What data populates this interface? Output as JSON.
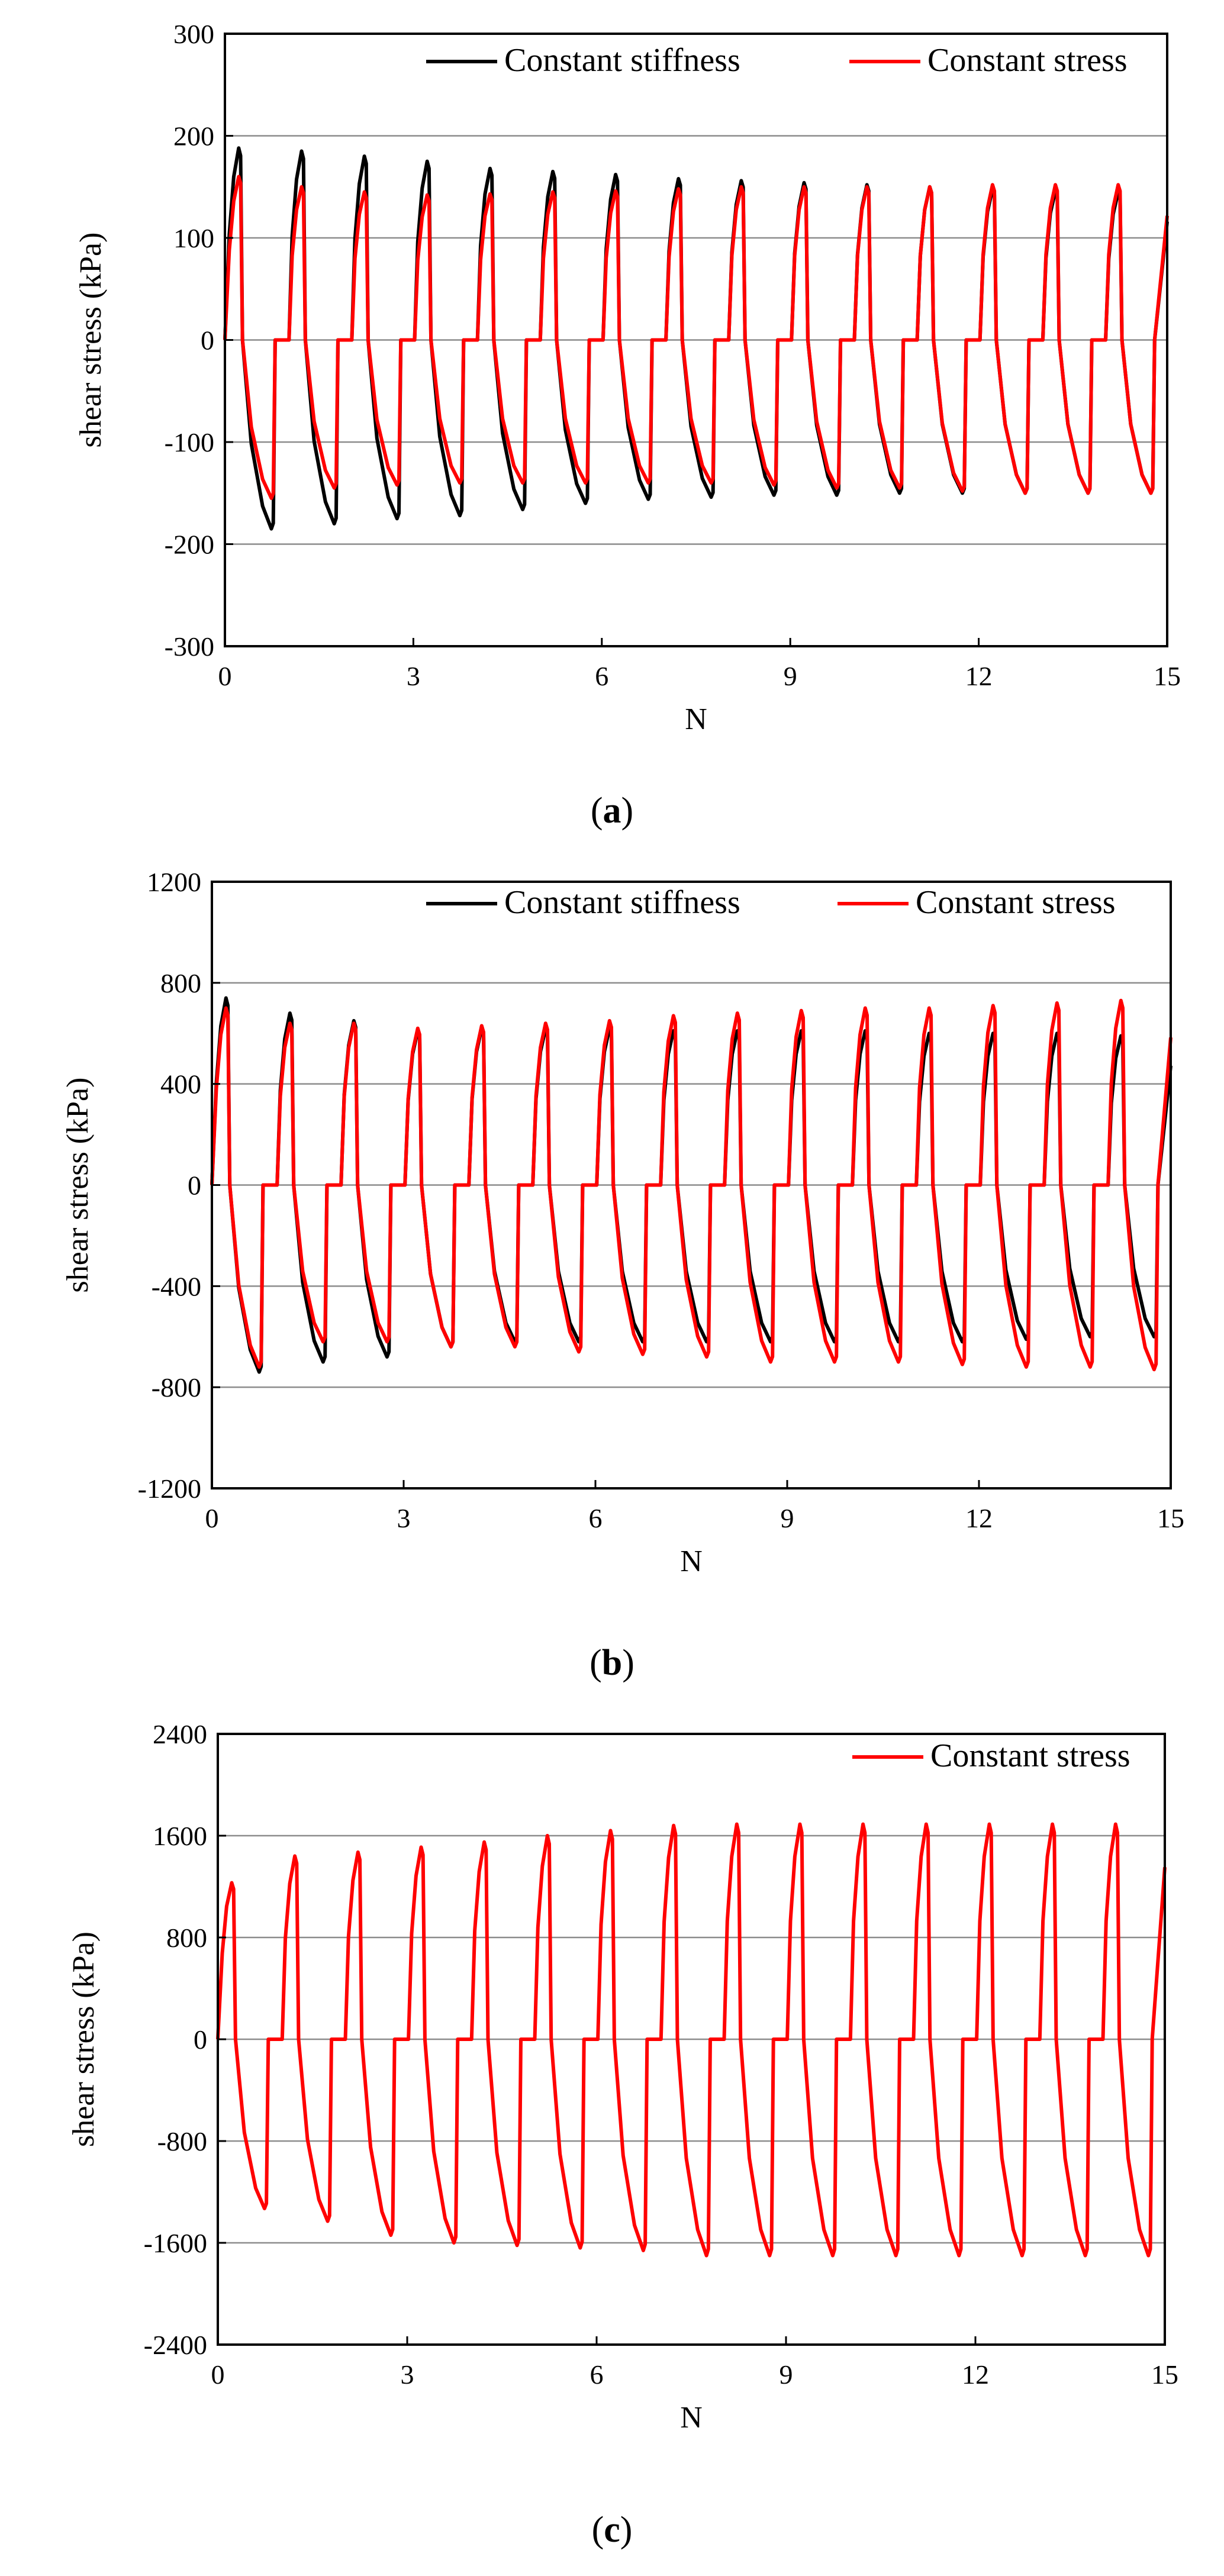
{
  "chart_data": [
    {
      "type": "line",
      "panel": "a",
      "caption_open": "(",
      "caption_letter": "a",
      "caption_close": ")",
      "xlabel": "N",
      "ylabel": "shear stress (kPa)",
      "xlim": [
        0,
        15
      ],
      "ylim": [
        -300,
        300
      ],
      "xticks": [
        0,
        3,
        6,
        9,
        12,
        15
      ],
      "yticks": [
        -300,
        -200,
        -100,
        0,
        100,
        200,
        300
      ],
      "xtick_labels": [
        "0",
        "3",
        "6",
        "9",
        "12",
        "15"
      ],
      "ytick_labels": [
        "-300",
        "-200",
        "-100",
        "0",
        "100",
        "200",
        "300"
      ],
      "grid": "horizontal",
      "legend": "top-right",
      "series": [
        {
          "name": "Constant stiffness",
          "color": "#000000",
          "peaks": [
            188,
            185,
            180,
            175,
            168,
            165,
            162,
            158,
            156,
            154,
            152,
            150,
            148,
            146,
            145
          ],
          "troughs": [
            -185,
            -180,
            -175,
            -172,
            -166,
            -160,
            -156,
            -154,
            -152,
            -152,
            -150,
            -150,
            -150,
            -150,
            -150
          ]
        },
        {
          "name": "Constant stress",
          "color": "#ff0000",
          "peaks": [
            160,
            150,
            145,
            142,
            143,
            145,
            146,
            148,
            150,
            150,
            150,
            150,
            152,
            152,
            152
          ],
          "troughs": [
            -155,
            -145,
            -142,
            -140,
            -140,
            -140,
            -140,
            -140,
            -142,
            -145,
            -145,
            -148,
            -150,
            -150,
            -150
          ]
        }
      ]
    },
    {
      "type": "line",
      "panel": "b",
      "caption_open": "(",
      "caption_letter": "b",
      "caption_close": ")",
      "xlabel": "N",
      "ylabel": "shear stress (kPa)",
      "xlim": [
        0,
        15
      ],
      "ylim": [
        -1200,
        1200
      ],
      "xticks": [
        0,
        3,
        6,
        9,
        12,
        15
      ],
      "yticks": [
        -1200,
        -800,
        -400,
        0,
        400,
        800,
        1200
      ],
      "xtick_labels": [
        "0",
        "3",
        "6",
        "9",
        "12",
        "15"
      ],
      "ytick_labels": [
        "-1200",
        "-800",
        "-400",
        "0",
        "400",
        "800",
        "1200"
      ],
      "grid": "horizontal",
      "legend": "top-right",
      "series": [
        {
          "name": "Constant stiffness",
          "color": "#000000",
          "peaks": [
            740,
            680,
            650,
            610,
            620,
            620,
            620,
            610,
            610,
            610,
            610,
            600,
            600,
            600,
            590
          ],
          "troughs": [
            -740,
            -700,
            -680,
            -640,
            -620,
            -620,
            -620,
            -620,
            -620,
            -620,
            -620,
            -620,
            -610,
            -600,
            -600
          ]
        },
        {
          "name": "Constant stress",
          "color": "#ff0000",
          "peaks": [
            700,
            640,
            640,
            620,
            630,
            640,
            650,
            670,
            680,
            690,
            700,
            700,
            710,
            720,
            730
          ],
          "troughs": [
            -720,
            -620,
            -620,
            -640,
            -640,
            -660,
            -670,
            -680,
            -700,
            -700,
            -700,
            -710,
            -720,
            -720,
            -730
          ]
        }
      ]
    },
    {
      "type": "line",
      "panel": "c",
      "caption_open": "(",
      "caption_letter": "c",
      "caption_close": ")",
      "xlabel": "N",
      "ylabel": "shear stress (kPa)",
      "xlim": [
        0,
        15
      ],
      "ylim": [
        -2400,
        2400
      ],
      "xticks": [
        0,
        3,
        6,
        9,
        12,
        15
      ],
      "yticks": [
        -2400,
        -1600,
        -800,
        0,
        800,
        1600,
        2400
      ],
      "xtick_labels": [
        "0",
        "3",
        "6",
        "9",
        "12",
        "15"
      ],
      "ytick_labels": [
        "-2400",
        "-1600",
        "-800",
        "0",
        "800",
        "1600",
        "2400"
      ],
      "grid": "horizontal",
      "legend": "top-right",
      "series": [
        {
          "name": "Constant stress",
          "color": "#ff0000",
          "peaks": [
            1230,
            1440,
            1470,
            1510,
            1550,
            1600,
            1640,
            1680,
            1690,
            1690,
            1690,
            1690,
            1690,
            1690,
            1690
          ],
          "troughs": [
            -1330,
            -1430,
            -1540,
            -1600,
            -1620,
            -1640,
            -1660,
            -1700,
            -1700,
            -1700,
            -1700,
            -1700,
            -1700,
            -1700,
            -1700
          ]
        }
      ]
    }
  ]
}
